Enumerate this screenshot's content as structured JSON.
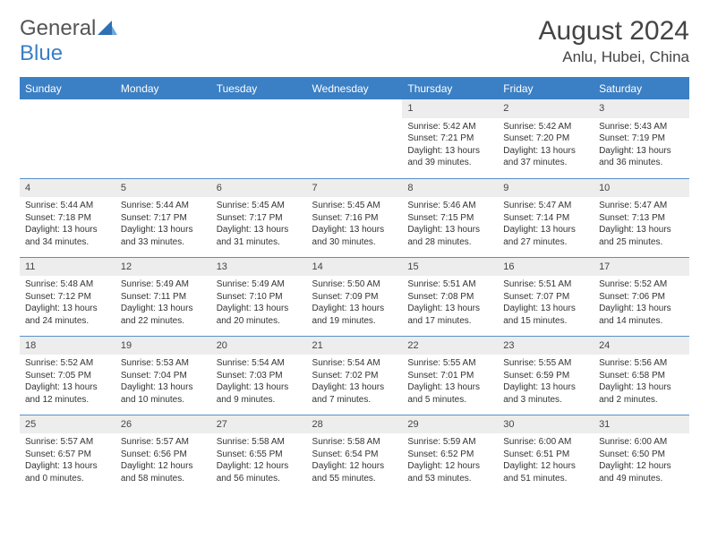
{
  "logo": {
    "text_general": "General",
    "text_blue": "Blue"
  },
  "title": "August 2024",
  "location": "Anlu, Hubei, China",
  "colors": {
    "header_bg": "#3b7fc4",
    "header_text": "#ffffff",
    "daynum_bg": "#ededed",
    "body_text": "#333333",
    "rule": "#5a8fc9",
    "logo_gray": "#555555",
    "logo_blue": "#3b7fc4"
  },
  "day_headers": [
    "Sunday",
    "Monday",
    "Tuesday",
    "Wednesday",
    "Thursday",
    "Friday",
    "Saturday"
  ],
  "weeks": [
    [
      null,
      null,
      null,
      null,
      {
        "n": "1",
        "sunrise": "Sunrise: 5:42 AM",
        "sunset": "Sunset: 7:21 PM",
        "daylight": "Daylight: 13 hours and 39 minutes."
      },
      {
        "n": "2",
        "sunrise": "Sunrise: 5:42 AM",
        "sunset": "Sunset: 7:20 PM",
        "daylight": "Daylight: 13 hours and 37 minutes."
      },
      {
        "n": "3",
        "sunrise": "Sunrise: 5:43 AM",
        "sunset": "Sunset: 7:19 PM",
        "daylight": "Daylight: 13 hours and 36 minutes."
      }
    ],
    [
      {
        "n": "4",
        "sunrise": "Sunrise: 5:44 AM",
        "sunset": "Sunset: 7:18 PM",
        "daylight": "Daylight: 13 hours and 34 minutes."
      },
      {
        "n": "5",
        "sunrise": "Sunrise: 5:44 AM",
        "sunset": "Sunset: 7:17 PM",
        "daylight": "Daylight: 13 hours and 33 minutes."
      },
      {
        "n": "6",
        "sunrise": "Sunrise: 5:45 AM",
        "sunset": "Sunset: 7:17 PM",
        "daylight": "Daylight: 13 hours and 31 minutes."
      },
      {
        "n": "7",
        "sunrise": "Sunrise: 5:45 AM",
        "sunset": "Sunset: 7:16 PM",
        "daylight": "Daylight: 13 hours and 30 minutes."
      },
      {
        "n": "8",
        "sunrise": "Sunrise: 5:46 AM",
        "sunset": "Sunset: 7:15 PM",
        "daylight": "Daylight: 13 hours and 28 minutes."
      },
      {
        "n": "9",
        "sunrise": "Sunrise: 5:47 AM",
        "sunset": "Sunset: 7:14 PM",
        "daylight": "Daylight: 13 hours and 27 minutes."
      },
      {
        "n": "10",
        "sunrise": "Sunrise: 5:47 AM",
        "sunset": "Sunset: 7:13 PM",
        "daylight": "Daylight: 13 hours and 25 minutes."
      }
    ],
    [
      {
        "n": "11",
        "sunrise": "Sunrise: 5:48 AM",
        "sunset": "Sunset: 7:12 PM",
        "daylight": "Daylight: 13 hours and 24 minutes."
      },
      {
        "n": "12",
        "sunrise": "Sunrise: 5:49 AM",
        "sunset": "Sunset: 7:11 PM",
        "daylight": "Daylight: 13 hours and 22 minutes."
      },
      {
        "n": "13",
        "sunrise": "Sunrise: 5:49 AM",
        "sunset": "Sunset: 7:10 PM",
        "daylight": "Daylight: 13 hours and 20 minutes."
      },
      {
        "n": "14",
        "sunrise": "Sunrise: 5:50 AM",
        "sunset": "Sunset: 7:09 PM",
        "daylight": "Daylight: 13 hours and 19 minutes."
      },
      {
        "n": "15",
        "sunrise": "Sunrise: 5:51 AM",
        "sunset": "Sunset: 7:08 PM",
        "daylight": "Daylight: 13 hours and 17 minutes."
      },
      {
        "n": "16",
        "sunrise": "Sunrise: 5:51 AM",
        "sunset": "Sunset: 7:07 PM",
        "daylight": "Daylight: 13 hours and 15 minutes."
      },
      {
        "n": "17",
        "sunrise": "Sunrise: 5:52 AM",
        "sunset": "Sunset: 7:06 PM",
        "daylight": "Daylight: 13 hours and 14 minutes."
      }
    ],
    [
      {
        "n": "18",
        "sunrise": "Sunrise: 5:52 AM",
        "sunset": "Sunset: 7:05 PM",
        "daylight": "Daylight: 13 hours and 12 minutes."
      },
      {
        "n": "19",
        "sunrise": "Sunrise: 5:53 AM",
        "sunset": "Sunset: 7:04 PM",
        "daylight": "Daylight: 13 hours and 10 minutes."
      },
      {
        "n": "20",
        "sunrise": "Sunrise: 5:54 AM",
        "sunset": "Sunset: 7:03 PM",
        "daylight": "Daylight: 13 hours and 9 minutes."
      },
      {
        "n": "21",
        "sunrise": "Sunrise: 5:54 AM",
        "sunset": "Sunset: 7:02 PM",
        "daylight": "Daylight: 13 hours and 7 minutes."
      },
      {
        "n": "22",
        "sunrise": "Sunrise: 5:55 AM",
        "sunset": "Sunset: 7:01 PM",
        "daylight": "Daylight: 13 hours and 5 minutes."
      },
      {
        "n": "23",
        "sunrise": "Sunrise: 5:55 AM",
        "sunset": "Sunset: 6:59 PM",
        "daylight": "Daylight: 13 hours and 3 minutes."
      },
      {
        "n": "24",
        "sunrise": "Sunrise: 5:56 AM",
        "sunset": "Sunset: 6:58 PM",
        "daylight": "Daylight: 13 hours and 2 minutes."
      }
    ],
    [
      {
        "n": "25",
        "sunrise": "Sunrise: 5:57 AM",
        "sunset": "Sunset: 6:57 PM",
        "daylight": "Daylight: 13 hours and 0 minutes."
      },
      {
        "n": "26",
        "sunrise": "Sunrise: 5:57 AM",
        "sunset": "Sunset: 6:56 PM",
        "daylight": "Daylight: 12 hours and 58 minutes."
      },
      {
        "n": "27",
        "sunrise": "Sunrise: 5:58 AM",
        "sunset": "Sunset: 6:55 PM",
        "daylight": "Daylight: 12 hours and 56 minutes."
      },
      {
        "n": "28",
        "sunrise": "Sunrise: 5:58 AM",
        "sunset": "Sunset: 6:54 PM",
        "daylight": "Daylight: 12 hours and 55 minutes."
      },
      {
        "n": "29",
        "sunrise": "Sunrise: 5:59 AM",
        "sunset": "Sunset: 6:52 PM",
        "daylight": "Daylight: 12 hours and 53 minutes."
      },
      {
        "n": "30",
        "sunrise": "Sunrise: 6:00 AM",
        "sunset": "Sunset: 6:51 PM",
        "daylight": "Daylight: 12 hours and 51 minutes."
      },
      {
        "n": "31",
        "sunrise": "Sunrise: 6:00 AM",
        "sunset": "Sunset: 6:50 PM",
        "daylight": "Daylight: 12 hours and 49 minutes."
      }
    ]
  ]
}
